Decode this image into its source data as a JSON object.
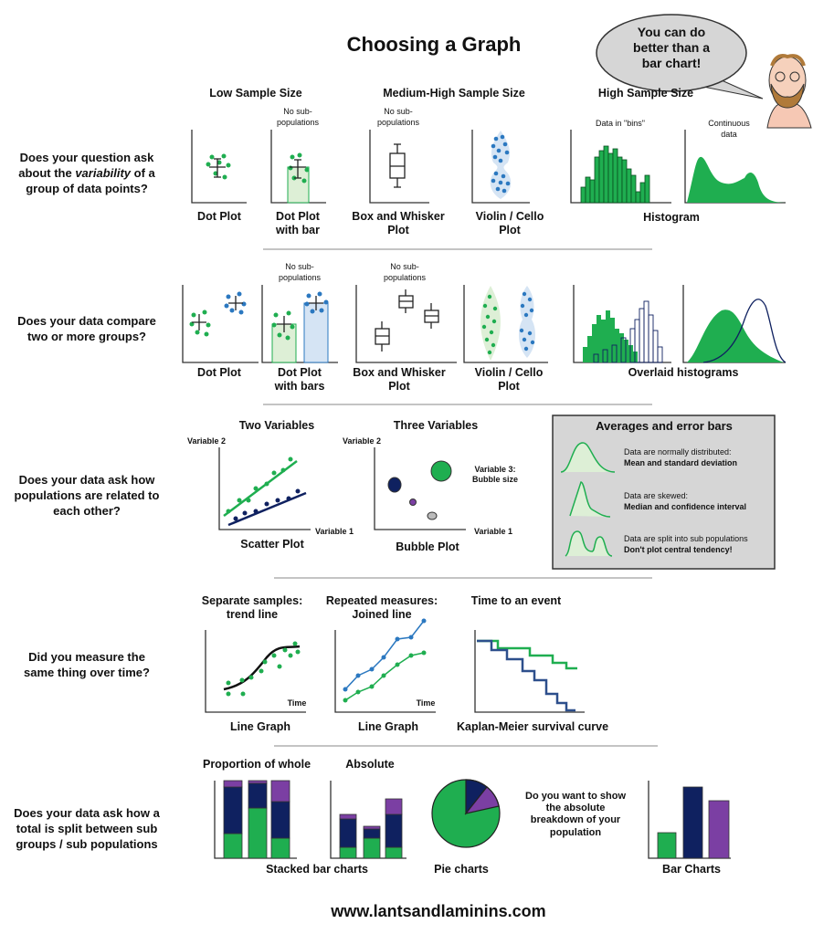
{
  "title": "Choosing a Graph",
  "speech_bubble": "You can do\nbetter than a\nbar chart!",
  "column_headers": [
    "Low Sample Size",
    "Medium-High Sample Size",
    "High Sample Size"
  ],
  "questions": [
    "Does your question ask\nabout the variability of a\ngroup of data points?",
    "Does your data compare\ntwo or more groups?",
    "Does your data ask how\npopulations are related to\neach other?",
    "Did you measure the\nsame thing over time?",
    "Does your data ask how a\ntotal is split between sub\ngroups / sub populations"
  ],
  "row1": {
    "notes": {
      "no_sub_a": "No sub-\npopulations",
      "no_sub_b": "No sub-\npopulations",
      "bins": "Data in \"bins\"",
      "continuous": "Continuous\ndata"
    },
    "labels": [
      "Dot Plot",
      "Dot Plot\nwith bar",
      "Box and Whisker\nPlot",
      "Violin / Cello\nPlot",
      "Histogram"
    ]
  },
  "row2": {
    "notes": {
      "no_sub_a": "No sub-\npopulations",
      "no_sub_b": "No sub-\npopulations"
    },
    "labels": [
      "Dot Plot",
      "Dot Plot\nwith bars",
      "Box and Whisker\nPlot",
      "Violin / Cello\nPlot",
      "Overlaid histograms"
    ]
  },
  "row3": {
    "two_variables": "Two Variables",
    "three_variables": "Three Variables",
    "variable2": "Variable 2",
    "variable1": "Variable 1",
    "variable3": "Variable 3:\nBubble size",
    "scatter_label": "Scatter Plot",
    "bubble_label": "Bubble Plot",
    "averages_box": {
      "title": "Averages and error bars",
      "items": [
        {
          "condition": "Data are normally distributed:",
          "advice": "Mean and standard deviation"
        },
        {
          "condition": "Data are skewed:",
          "advice": "Median and confidence interval"
        },
        {
          "condition": "Data are split into sub populations",
          "advice": "Don't plot central tendency!"
        }
      ]
    }
  },
  "row4": {
    "headers": [
      "Separate samples:\ntrend line",
      "Repeated measures:\nJoined line",
      "Time to an event"
    ],
    "time": "Time",
    "labels": [
      "Line Graph",
      "Line Graph",
      "Kaplan-Meier survival curve"
    ]
  },
  "row5": {
    "proportion": "Proportion of whole",
    "absolute": "Absolute",
    "question": "Do you want to show\nthe absolute\nbreakdown of your\npopulation",
    "labels": [
      "Stacked bar charts",
      "Pie charts",
      "Bar Charts"
    ]
  },
  "footer": "www.lantsandlaminins.com",
  "colors": {
    "green": "#1fae50",
    "navy": "#0f2160",
    "blue": "#2b78c0",
    "purple": "#7b3fa3",
    "light_green": "#ddefd6",
    "light_blue": "#d5e4f4",
    "box_grey": "#d6d6d6"
  }
}
